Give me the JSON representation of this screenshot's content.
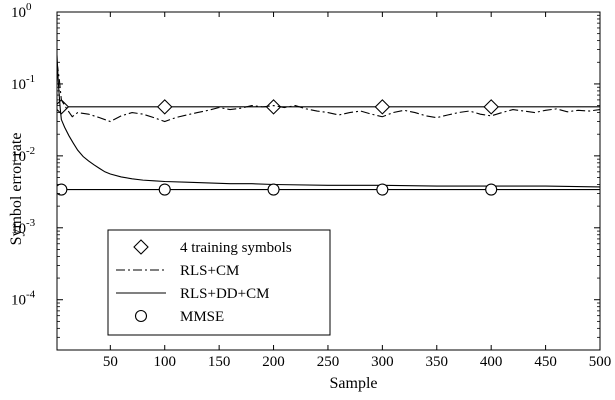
{
  "chart_data": {
    "type": "line",
    "xlabel": "Sample",
    "ylabel": "Symbol error rate",
    "xlim": [
      1,
      500
    ],
    "ylim": [
      2e-05,
      1
    ],
    "yscale": "log",
    "grid": false,
    "legend_position": "bottom-left",
    "x_ticks": [
      {
        "value": 50,
        "label": "50"
      },
      {
        "value": 100,
        "label": "100"
      },
      {
        "value": 150,
        "label": "150"
      },
      {
        "value": 200,
        "label": "200"
      },
      {
        "value": 250,
        "label": "250"
      },
      {
        "value": 300,
        "label": "300"
      },
      {
        "value": 350,
        "label": "350"
      },
      {
        "value": 400,
        "label": "400"
      },
      {
        "value": 450,
        "label": "450"
      },
      {
        "value": 500,
        "label": "500"
      }
    ],
    "y_ticks": [
      {
        "value": 1,
        "base": "10",
        "exp": "0"
      },
      {
        "value": 0.1,
        "base": "10",
        "exp": "-1"
      },
      {
        "value": 0.01,
        "base": "10",
        "exp": "-2"
      },
      {
        "value": 0.001,
        "base": "10",
        "exp": "-3"
      },
      {
        "value": 0.0001,
        "base": "10",
        "exp": "-4"
      }
    ],
    "series": [
      {
        "name": "4 training symbols",
        "style": "solid-with-diamond-markers",
        "color": "#000000",
        "x": [
          1,
          500
        ],
        "y": [
          0.048,
          0.048
        ],
        "marker_x": [
          5,
          100,
          200,
          300,
          400
        ]
      },
      {
        "name": "RLS+CM",
        "style": "dash-dot",
        "color": "#000000",
        "x": [
          1,
          3,
          5,
          10,
          15,
          20,
          30,
          40,
          50,
          60,
          70,
          80,
          90,
          100,
          110,
          120,
          130,
          140,
          150,
          160,
          170,
          180,
          190,
          200,
          210,
          220,
          230,
          240,
          250,
          260,
          270,
          280,
          290,
          300,
          310,
          320,
          330,
          340,
          350,
          360,
          370,
          380,
          390,
          400,
          410,
          420,
          430,
          440,
          450,
          460,
          470,
          480,
          490,
          500
        ],
        "y": [
          0.2,
          0.12,
          0.06,
          0.045,
          0.035,
          0.04,
          0.038,
          0.034,
          0.03,
          0.036,
          0.04,
          0.038,
          0.034,
          0.03,
          0.034,
          0.037,
          0.04,
          0.043,
          0.047,
          0.044,
          0.046,
          0.05,
          0.048,
          0.05,
          0.047,
          0.05,
          0.045,
          0.042,
          0.04,
          0.037,
          0.04,
          0.042,
          0.038,
          0.035,
          0.04,
          0.043,
          0.04,
          0.036,
          0.034,
          0.037,
          0.04,
          0.042,
          0.038,
          0.036,
          0.04,
          0.044,
          0.042,
          0.04,
          0.043,
          0.045,
          0.041,
          0.043,
          0.042,
          0.044
        ]
      },
      {
        "name": "RLS+DD+CM",
        "style": "solid",
        "color": "#000000",
        "x": [
          1,
          2,
          3,
          4,
          5,
          8,
          12,
          16,
          20,
          25,
          30,
          35,
          40,
          45,
          50,
          60,
          70,
          80,
          90,
          100,
          120,
          140,
          160,
          180,
          200,
          250,
          300,
          350,
          400,
          450,
          500
        ],
        "y": [
          0.25,
          0.12,
          0.07,
          0.045,
          0.032,
          0.025,
          0.019,
          0.015,
          0.012,
          0.0098,
          0.0085,
          0.0075,
          0.0067,
          0.006,
          0.0056,
          0.0051,
          0.0048,
          0.0046,
          0.0045,
          0.0044,
          0.0043,
          0.0042,
          0.0041,
          0.0041,
          0.004,
          0.0039,
          0.0039,
          0.0038,
          0.0038,
          0.0038,
          0.0037
        ]
      },
      {
        "name": "MMSE",
        "style": "solid-with-circle-markers",
        "color": "#000000",
        "x": [
          1,
          500
        ],
        "y": [
          0.0034,
          0.0034
        ],
        "marker_x": [
          5,
          100,
          200,
          300,
          400
        ]
      }
    ]
  }
}
